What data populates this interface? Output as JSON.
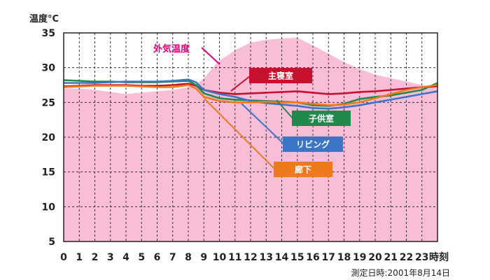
{
  "chart_data": {
    "type": "area",
    "ylabel": "温度°C",
    "xlabel": "時刻",
    "note": "測定日時:2001年8月14日",
    "xlim": [
      0,
      24
    ],
    "ylim": [
      5,
      35
    ],
    "x_ticks": [
      0,
      1,
      2,
      3,
      4,
      5,
      6,
      7,
      8,
      9,
      10,
      11,
      12,
      13,
      14,
      15,
      16,
      17,
      18,
      19,
      20,
      21,
      22,
      23
    ],
    "y_ticks": [
      5,
      10,
      15,
      20,
      25,
      30,
      35
    ],
    "grid": true,
    "grid_style": "dashed",
    "colors": {
      "area_fill": "#f9bdd8",
      "plot_background": "#ffffff",
      "outside": "#e6007e",
      "master": "#c8102e",
      "child": "#1f8a4c",
      "living": "#3a76c4",
      "corridor": "#ee7a1c"
    },
    "series": [
      {
        "name": "外気温度",
        "key": "outside",
        "style": "area",
        "x": [
          0,
          1,
          2,
          3,
          4,
          5,
          6,
          7,
          8,
          8.5,
          9,
          9.5,
          10,
          11,
          12,
          13,
          14,
          15,
          16,
          17,
          18,
          19,
          20,
          21,
          22,
          23,
          24
        ],
        "y": [
          27,
          27,
          26.8,
          26.5,
          26.2,
          26.4,
          26.6,
          26.8,
          27.2,
          27.5,
          28.5,
          29.8,
          31,
          32.5,
          33.6,
          34,
          34.2,
          34.3,
          33.2,
          32,
          30.8,
          29.8,
          29,
          28.5,
          28,
          27.5,
          27
        ]
      },
      {
        "name": "主寝室",
        "key": "master",
        "style": "line",
        "x": [
          0,
          1,
          2,
          3,
          4,
          5,
          6,
          7,
          8,
          8.5,
          9,
          10,
          11,
          12,
          13,
          14,
          15,
          16,
          17,
          18,
          19,
          20,
          21,
          22,
          23,
          24
        ],
        "y": [
          27.3,
          27.4,
          27.5,
          27.5,
          27.5,
          27.4,
          27.4,
          27.5,
          27.7,
          27.4,
          26.8,
          26.4,
          26.2,
          26.3,
          26.4,
          26.5,
          26.6,
          26.4,
          26.2,
          26.3,
          26.5,
          26.6,
          26.8,
          27,
          27.2,
          27.3
        ]
      },
      {
        "name": "子供室",
        "key": "child",
        "style": "line",
        "x": [
          0,
          1,
          2,
          3,
          4,
          5,
          6,
          7,
          8,
          8.5,
          9,
          10,
          11,
          12,
          13,
          14,
          15,
          16,
          17,
          18,
          19,
          20,
          21,
          22,
          23,
          24
        ],
        "y": [
          28.2,
          28.1,
          28,
          28,
          27.9,
          27.9,
          27.9,
          28,
          28.1,
          27.5,
          26.3,
          25.6,
          25.4,
          25.3,
          25.2,
          25.1,
          25,
          24.6,
          24.5,
          24.8,
          25.5,
          25.8,
          26,
          26.4,
          26.8,
          27.8
        ]
      },
      {
        "name": "リビング",
        "key": "living",
        "style": "line",
        "x": [
          0,
          1,
          2,
          3,
          4,
          5,
          6,
          7,
          8,
          8.5,
          9,
          10,
          11,
          12,
          13,
          14,
          15,
          16,
          17,
          18,
          19,
          20,
          21,
          22,
          23,
          24
        ],
        "y": [
          27.8,
          27.8,
          27.8,
          27.9,
          28,
          28,
          28,
          28.1,
          28.3,
          27.9,
          26.8,
          26.2,
          25.8,
          25.2,
          24.9,
          24.7,
          24.5,
          24.2,
          24.1,
          24.3,
          24.6,
          25,
          25.4,
          25.8,
          26.2,
          26.6
        ]
      },
      {
        "name": "廊下",
        "key": "corridor",
        "style": "line",
        "x": [
          0,
          1,
          2,
          3,
          4,
          5,
          6,
          7,
          8,
          8.5,
          9,
          10,
          11,
          12,
          13,
          14,
          15,
          16,
          17,
          18,
          19,
          20,
          21,
          22,
          23,
          24
        ],
        "y": [
          27.2,
          27.3,
          27.4,
          27.4,
          27.4,
          27.3,
          27.2,
          27.2,
          27.5,
          27,
          25.8,
          25.2,
          25,
          25,
          25.1,
          25,
          25,
          24.8,
          24.6,
          24.7,
          25,
          25.6,
          26.2,
          26.8,
          27.2,
          27.5
        ]
      }
    ]
  }
}
